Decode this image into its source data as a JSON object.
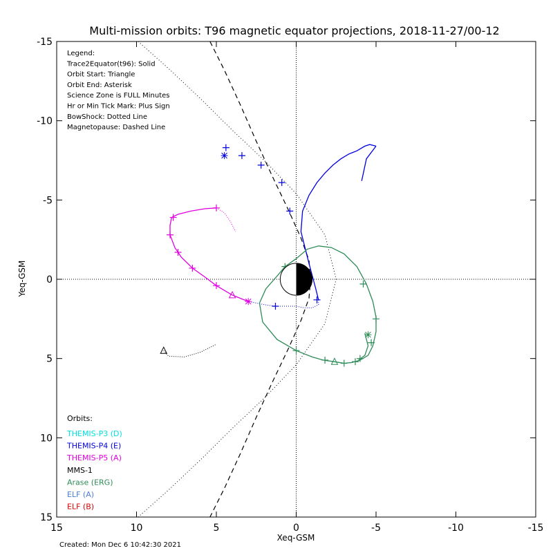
{
  "chart_data": {
    "type": "line",
    "title": "Multi-mission orbits: T96 magnetic equator projections, 2018-11-27/00-12",
    "xlabel": "Xeq-GSM",
    "ylabel": "Yeq-GSM",
    "xlim": [
      15,
      -15
    ],
    "ylim": [
      -15,
      15
    ],
    "x_ticks": [
      "15",
      "10",
      "5",
      "0",
      "-5",
      "-10",
      "-15"
    ],
    "y_ticks": [
      "-15",
      "-10",
      "-5",
      "0",
      "5",
      "10",
      "15"
    ],
    "x_tick_values": [
      15,
      10,
      5,
      0,
      -5,
      -10,
      -15
    ],
    "y_tick_values": [
      -15,
      -10,
      -5,
      0,
      5,
      10,
      15
    ],
    "legend_lines": [
      "Legend:",
      "Trace2Equator(t96): Solid",
      "Orbit Start: Triangle",
      "Orbit End: Asterisk",
      "Science Zone is FULL Minutes",
      "Hr or Min Tick Mark: Plus Sign",
      "BowShock: Dotted Line",
      "Magnetopause: Dashed Line"
    ],
    "orbits_header": "Orbits:",
    "orbits": [
      {
        "name": "THEMIS-P3 (D)",
        "color": "#00e0e0"
      },
      {
        "name": "THEMIS-P4 (E)",
        "color": "#0000e0"
      },
      {
        "name": "THEMIS-P5 (A)",
        "color": "#e000e0"
      },
      {
        "name": "MMS-1",
        "color": "#000000"
      },
      {
        "name": "Arase (ERG)",
        "color": "#2e8b57"
      },
      {
        "name": "ELF (A)",
        "color": "#4a7fd8"
      },
      {
        "name": "ELF (B)",
        "color": "#e00000"
      }
    ],
    "footer": "Created: Mon Dec  6 10:42:30 2021",
    "bowshock": [
      [
        9.9,
        -15.0
      ],
      [
        8.0,
        -13.3
      ],
      [
        6.0,
        -11.4
      ],
      [
        4.0,
        -9.4
      ],
      [
        2.0,
        -7.5
      ],
      [
        0.0,
        -5.4
      ],
      [
        -1.8,
        -2.8
      ],
      [
        -2.5,
        0.0
      ],
      [
        -1.8,
        2.8
      ],
      [
        0.0,
        5.4
      ],
      [
        2.0,
        7.5
      ],
      [
        4.0,
        9.4
      ],
      [
        6.0,
        11.4
      ],
      [
        8.0,
        13.3
      ],
      [
        9.9,
        15.0
      ]
    ],
    "magnetopause": [
      [
        5.4,
        -15.0
      ],
      [
        4.5,
        -13.2
      ],
      [
        3.5,
        -11.0
      ],
      [
        2.5,
        -8.7
      ],
      [
        1.5,
        -6.5
      ],
      [
        0.5,
        -4.4
      ],
      [
        -0.3,
        -2.6
      ],
      [
        -0.8,
        -1.2
      ],
      [
        -0.9,
        0.0
      ],
      [
        -0.8,
        1.2
      ],
      [
        -0.3,
        2.6
      ],
      [
        0.5,
        4.4
      ],
      [
        1.5,
        6.5
      ],
      [
        2.5,
        8.7
      ],
      [
        3.5,
        11.0
      ],
      [
        4.5,
        13.2
      ],
      [
        5.4,
        15.0
      ]
    ],
    "series": [
      {
        "name": "THEMIS-P4 (E)",
        "color": "#0000e0",
        "solid": [
          [
            -1.4,
            1.3
          ],
          [
            -1.2,
            0.5
          ],
          [
            -0.8,
            -1.0
          ],
          [
            -0.3,
            -3.0
          ],
          [
            -0.4,
            -4.3
          ],
          [
            -0.8,
            -5.3
          ],
          [
            -1.3,
            -6.1
          ],
          [
            -1.8,
            -6.7
          ],
          [
            -2.3,
            -7.2
          ],
          [
            -2.8,
            -7.6
          ],
          [
            -3.3,
            -7.9
          ],
          [
            -3.8,
            -8.1
          ],
          [
            -4.3,
            -8.4
          ],
          [
            -4.6,
            -8.5
          ],
          [
            -5.0,
            -8.4
          ]
        ],
        "dotted": [
          [
            -1.4,
            1.3
          ],
          [
            -1.4,
            1.6
          ],
          [
            -1.0,
            1.8
          ],
          [
            -0.5,
            1.8
          ],
          [
            0.0,
            1.7
          ],
          [
            0.5,
            1.7
          ],
          [
            1.3,
            1.7
          ],
          [
            2.0,
            1.6
          ],
          [
            3.0,
            1.4
          ]
        ],
        "tail": [
          [
            -5.0,
            -8.4
          ],
          [
            -4.4,
            -7.6
          ],
          [
            -4.1,
            -6.2
          ]
        ],
        "ticks": [
          [
            -1.3,
            1.3
          ],
          [
            0.4,
            -4.3
          ],
          [
            0.9,
            -6.1
          ],
          [
            2.2,
            -7.2
          ],
          [
            3.4,
            -7.8
          ],
          [
            4.4,
            -8.3
          ],
          [
            1.3,
            1.7
          ]
        ],
        "start": null,
        "end": [
          4.5,
          -7.8
        ]
      },
      {
        "name": "THEMIS-P5 (A)",
        "color": "#e000e0",
        "solid": [
          [
            3.0,
            1.4
          ],
          [
            4.0,
            1.0
          ],
          [
            5.0,
            0.4
          ],
          [
            5.8,
            -0.2
          ],
          [
            6.5,
            -0.7
          ],
          [
            7.2,
            -1.4
          ],
          [
            7.6,
            -2.0
          ],
          [
            7.9,
            -2.8
          ],
          [
            7.9,
            -3.4
          ],
          [
            7.8,
            -3.9
          ],
          [
            7.4,
            -4.1
          ],
          [
            6.6,
            -4.3
          ],
          [
            5.7,
            -4.45
          ],
          [
            5.0,
            -4.5
          ]
        ],
        "dotted": [
          [
            5.0,
            -4.5
          ],
          [
            4.5,
            -4.2
          ],
          [
            4.1,
            -3.6
          ],
          [
            3.8,
            -3.0
          ]
        ],
        "tail": [],
        "ticks": [
          [
            5.0,
            0.4
          ],
          [
            6.5,
            -0.7
          ],
          [
            7.4,
            -1.7
          ],
          [
            7.9,
            -2.8
          ],
          [
            7.7,
            -3.9
          ],
          [
            5.0,
            -4.5
          ]
        ],
        "start": [
          4.0,
          1.0
        ],
        "end": [
          3.0,
          1.4
        ]
      },
      {
        "name": "MMS-1",
        "color": "#000000",
        "solid": [],
        "dotted": [
          [
            8.3,
            4.5
          ],
          [
            8.0,
            4.85
          ],
          [
            7.0,
            4.9
          ],
          [
            6.0,
            4.6
          ],
          [
            5.0,
            4.1
          ]
        ],
        "tail": [],
        "ticks": [],
        "start": [
          8.3,
          4.5
        ],
        "end": null
      },
      {
        "name": "Arase (ERG)",
        "color": "#2e8b57",
        "solid": [
          [
            0.7,
            -0.8
          ],
          [
            0.0,
            -1.3
          ],
          [
            -0.7,
            -1.9
          ],
          [
            -1.4,
            -2.1
          ],
          [
            -2.2,
            -2.0
          ],
          [
            -3.0,
            -1.6
          ],
          [
            -3.8,
            -0.8
          ],
          [
            -4.4,
            0.3
          ],
          [
            -4.8,
            1.4
          ],
          [
            -5.0,
            2.4
          ],
          [
            -5.0,
            3.3
          ],
          [
            -4.8,
            4.2
          ],
          [
            -4.5,
            4.8
          ],
          [
            -4.0,
            5.1
          ],
          [
            -3.5,
            5.25
          ],
          [
            -3.0,
            5.3
          ],
          [
            -2.4,
            5.2
          ],
          [
            -1.7,
            5.1
          ],
          [
            -1.0,
            4.9
          ],
          [
            0.0,
            4.5
          ],
          [
            1.2,
            3.8
          ],
          [
            2.1,
            2.7
          ],
          [
            2.3,
            1.5
          ],
          [
            1.9,
            0.6
          ],
          [
            1.2,
            -0.2
          ],
          [
            0.7,
            -0.8
          ]
        ],
        "dotted": [],
        "tail": [
          [
            -4.3,
            3.4
          ],
          [
            -4.5,
            4.2
          ],
          [
            -4.3,
            4.8
          ],
          [
            -3.9,
            5.1
          ]
        ],
        "ticks": [
          [
            0.7,
            -0.8
          ],
          [
            -4.2,
            0.3
          ],
          [
            -5.0,
            2.5
          ],
          [
            -4.7,
            4.0
          ],
          [
            -4.0,
            5.0
          ],
          [
            -3.7,
            5.2
          ],
          [
            -3.0,
            5.3
          ],
          [
            -1.8,
            5.1
          ],
          [
            0.0,
            4.5
          ]
        ],
        "start": [
          -2.4,
          5.2
        ],
        "end": [
          -4.5,
          3.5
        ]
      }
    ],
    "earth_radius": 1
  }
}
